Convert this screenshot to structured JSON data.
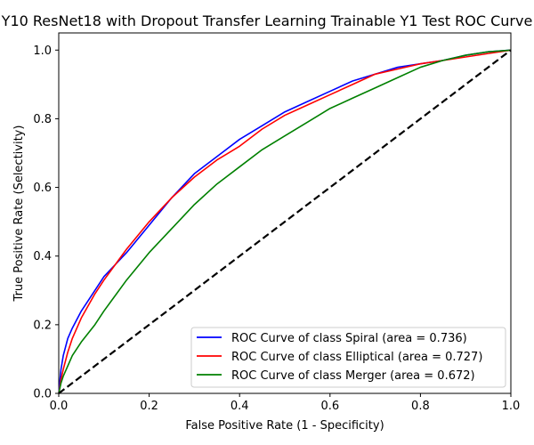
{
  "chart_data": {
    "type": "line",
    "title": "Y10 ResNet18 with Dropout Transfer Learning Trainable Y1 Test ROC Curve",
    "xlabel": "False Positive Rate (1 - Specificity)",
    "ylabel": "True Positive Rate (Selectivity)",
    "xlim": [
      0.0,
      1.0
    ],
    "ylim": [
      0.0,
      1.05
    ],
    "xticks": [
      "0.0",
      "0.2",
      "0.4",
      "0.6",
      "0.8",
      "1.0"
    ],
    "yticks": [
      "0.0",
      "0.2",
      "0.4",
      "0.6",
      "0.8",
      "1.0"
    ],
    "grid": false,
    "legend_position": "lower-right",
    "series": [
      {
        "name": "ROC Curve of class Spiral (area = 0.736)",
        "color": "#0000ff",
        "x": [
          0.0,
          0.005,
          0.01,
          0.02,
          0.03,
          0.05,
          0.08,
          0.1,
          0.15,
          0.2,
          0.25,
          0.3,
          0.35,
          0.4,
          0.45,
          0.5,
          0.55,
          0.6,
          0.65,
          0.7,
          0.75,
          0.8,
          0.85,
          0.9,
          0.95,
          1.0
        ],
        "y": [
          0.0,
          0.07,
          0.11,
          0.16,
          0.19,
          0.24,
          0.3,
          0.34,
          0.41,
          0.49,
          0.57,
          0.64,
          0.69,
          0.74,
          0.78,
          0.82,
          0.85,
          0.88,
          0.91,
          0.93,
          0.95,
          0.96,
          0.97,
          0.985,
          0.995,
          1.0
        ]
      },
      {
        "name": "ROC Curve of class Elliptical (area = 0.727)",
        "color": "#ff0000",
        "x": [
          0.0,
          0.005,
          0.01,
          0.02,
          0.03,
          0.05,
          0.08,
          0.1,
          0.15,
          0.2,
          0.25,
          0.3,
          0.35,
          0.4,
          0.45,
          0.5,
          0.55,
          0.6,
          0.65,
          0.7,
          0.75,
          0.8,
          0.85,
          0.9,
          0.95,
          1.0
        ],
        "y": [
          0.0,
          0.04,
          0.07,
          0.12,
          0.16,
          0.22,
          0.29,
          0.33,
          0.42,
          0.5,
          0.57,
          0.63,
          0.68,
          0.72,
          0.77,
          0.81,
          0.84,
          0.87,
          0.9,
          0.93,
          0.945,
          0.96,
          0.97,
          0.98,
          0.99,
          1.0
        ]
      },
      {
        "name": "ROC Curve of class Merger (area = 0.672)",
        "color": "#008000",
        "x": [
          0.0,
          0.005,
          0.01,
          0.02,
          0.03,
          0.05,
          0.08,
          0.1,
          0.15,
          0.2,
          0.25,
          0.3,
          0.35,
          0.4,
          0.45,
          0.5,
          0.55,
          0.6,
          0.65,
          0.7,
          0.75,
          0.8,
          0.85,
          0.9,
          0.95,
          1.0
        ],
        "y": [
          0.0,
          0.03,
          0.05,
          0.08,
          0.11,
          0.15,
          0.2,
          0.24,
          0.33,
          0.41,
          0.48,
          0.55,
          0.61,
          0.66,
          0.71,
          0.75,
          0.79,
          0.83,
          0.86,
          0.89,
          0.92,
          0.95,
          0.97,
          0.985,
          0.995,
          1.0
        ]
      },
      {
        "name": "",
        "color": "#000000",
        "dashed": true,
        "x": [
          0.0,
          1.0
        ],
        "y": [
          0.0,
          1.0
        ]
      }
    ]
  }
}
